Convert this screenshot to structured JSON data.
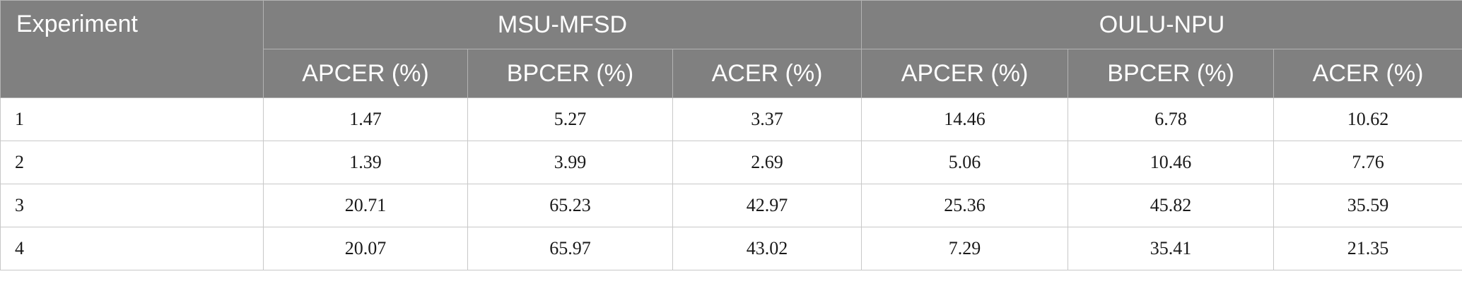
{
  "table": {
    "corner_header": "Experiment",
    "group_headers": [
      "MSU-MFSD",
      "OULU-NPU"
    ],
    "sub_headers": [
      "APCER (%)",
      "BPCER (%)",
      "ACER (%)",
      "APCER (%)",
      "BPCER (%)",
      "ACER (%)"
    ],
    "rows": [
      {
        "experiment": "1",
        "values": [
          "1.47",
          "5.27",
          "3.37",
          "14.46",
          "6.78",
          "10.62"
        ]
      },
      {
        "experiment": "2",
        "values": [
          "1.39",
          "3.99",
          "2.69",
          "5.06",
          "10.46",
          "7.76"
        ]
      },
      {
        "experiment": "3",
        "values": [
          "20.71",
          "65.23",
          "42.97",
          "25.36",
          "45.82",
          "35.59"
        ]
      },
      {
        "experiment": "4",
        "values": [
          "20.07",
          "65.97",
          "43.02",
          "7.29",
          "35.41",
          "21.35"
        ]
      }
    ]
  },
  "colors": {
    "header_background": "#808080",
    "header_text": "#ffffff",
    "body_text": "#1a1a1a",
    "grid_line": "#c8c8c8"
  }
}
